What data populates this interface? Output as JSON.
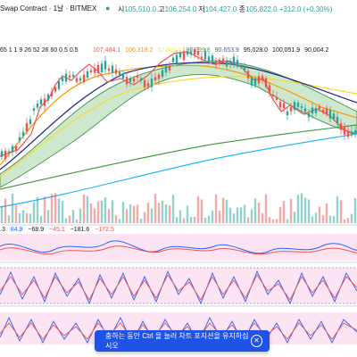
{
  "legend": {
    "title": "Swap Contract · 1날 · BITMEX",
    "open_label": "시",
    "open": "105,510.0",
    "high_label": "고",
    "high": "106,254.0",
    "low_label": "저",
    "low": "104,427.0",
    "close_label": "종",
    "close": "105,822.0",
    "change": "+312.0 (+0.30%)",
    "color": "#26a69a"
  },
  "indicator_params": "65 1 1 9 26 52 26 60 0.5 0.5",
  "ma_values": [
    {
      "text": "107,484.1",
      "color": "#ef5350"
    },
    {
      "text": "106,318.2",
      "color": "#ff9800"
    },
    {
      "text": "92,860.0",
      "color": "#ffeb3b"
    },
    {
      "text": "90,299.8",
      "color": "#4caf50"
    },
    {
      "text": "90,653.9",
      "color": "#2962ff"
    },
    {
      "text": "95,028.0",
      "color": "#131722"
    },
    {
      "text": "100,051.9",
      "color": "#131722"
    },
    {
      "text": "90,004.2",
      "color": "#131722"
    }
  ],
  "osc_values": [
    {
      "text": ".3",
      "color": "#131722"
    },
    {
      "text": "84.9",
      "color": "#2962ff"
    },
    {
      "text": "−68.9",
      "color": "#131722"
    },
    {
      "text": "−45.1",
      "color": "#ef5350"
    },
    {
      "text": "−181.6",
      "color": "#131722"
    },
    {
      "text": "−172.5",
      "color": "#ef5350"
    }
  ],
  "toast": {
    "message": "충하는 동안 Ctrl 을 눌러 차트 포지션을 유지하십시오",
    "close": "✕"
  },
  "colors": {
    "up": "#26a69a",
    "down": "#ef5350",
    "cloud": "#a5d6a7",
    "pane_bg": "#fce4f2"
  },
  "icons": {
    "dot": "status-dot-icon",
    "close": "close-icon"
  }
}
